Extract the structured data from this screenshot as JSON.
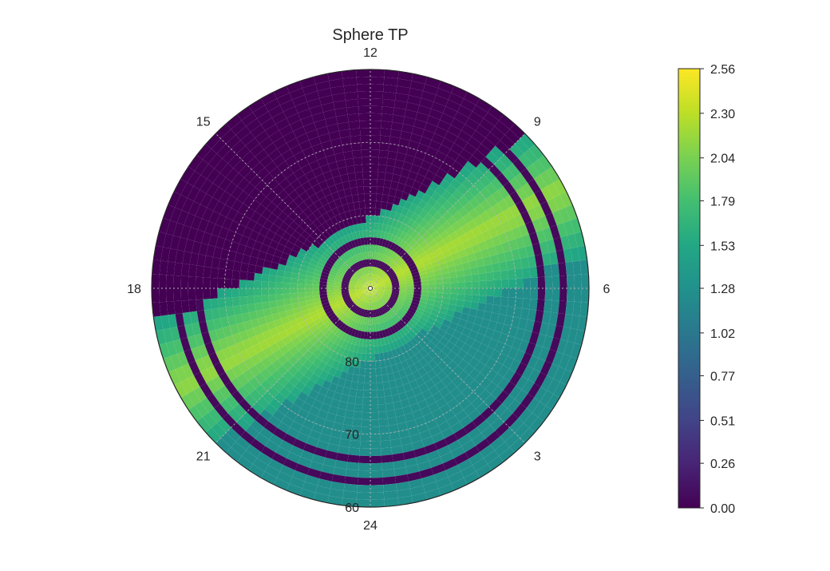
{
  "chart_data": {
    "type": "heatmap",
    "projection": "polar",
    "title": "Sphere TP",
    "angular_axis": {
      "tick_labels": [
        "24",
        "3",
        "6",
        "9",
        "12",
        "15",
        "18",
        "21"
      ],
      "unit": "hour",
      "direction": "counterclockwise",
      "zero_at": "bottom"
    },
    "radial_axis": {
      "tick_labels": [
        "60",
        "70",
        "80"
      ],
      "outer_edge": 60,
      "center": 90,
      "label_position": "along 24 meridian"
    },
    "colorbar": {
      "tick_labels": [
        "0.00",
        "0.26",
        "0.51",
        "0.77",
        "1.02",
        "1.28",
        "1.53",
        "1.79",
        "2.04",
        "2.30",
        "2.56"
      ],
      "min": 0.0,
      "max": 2.56,
      "colormap": "viridis",
      "placement": "right"
    },
    "grid": true,
    "gap_at": "24",
    "region_levels": {
      "background_upper": 1.25,
      "background_lower": 0.0,
      "band_peak": 2.3,
      "band_edge": 1.5
    }
  }
}
